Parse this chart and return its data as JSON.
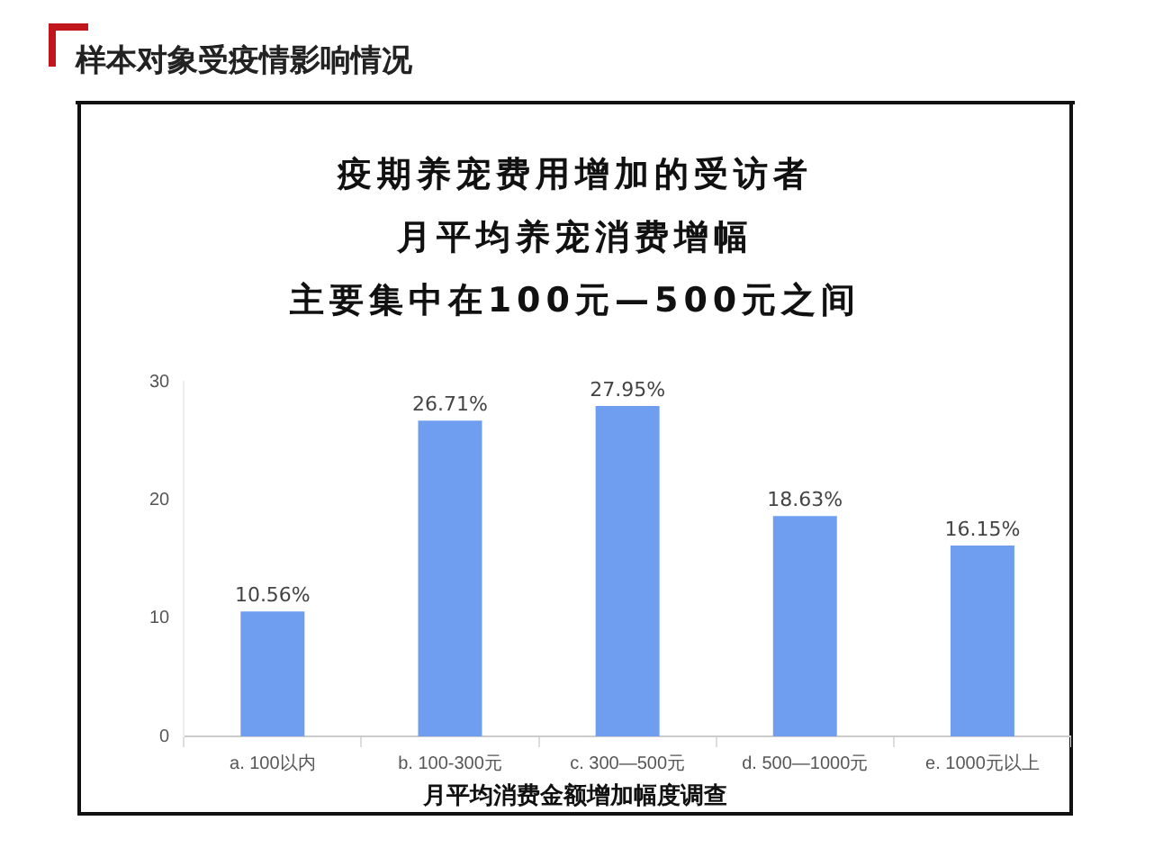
{
  "chart_data": {
    "type": "bar",
    "title": "样本对象受疫情影响情况",
    "subtitle": "疫期养宠费用增加的受访者",
    "annotations": [
      "月平均养宠消费增幅",
      "主要集中在100元—500元之间"
    ],
    "xlabel": "月平均消费金额增加幅度调查",
    "categories": [
      "a. 100以内",
      "b. 100-300元",
      "c. 300—500元",
      "d. 500—1000元",
      "e. 1000元以上"
    ],
    "values": [
      10.56,
      26.71,
      27.95,
      18.63,
      16.15
    ],
    "value_labels": [
      "10.56%",
      "26.71%",
      "27.95%",
      "18.63%",
      "16.15%"
    ],
    "color": "#6f9ef0",
    "ylim": [
      0,
      30
    ],
    "yticks": [
      0,
      10,
      20,
      30
    ],
    "grid": false,
    "legend": false
  }
}
